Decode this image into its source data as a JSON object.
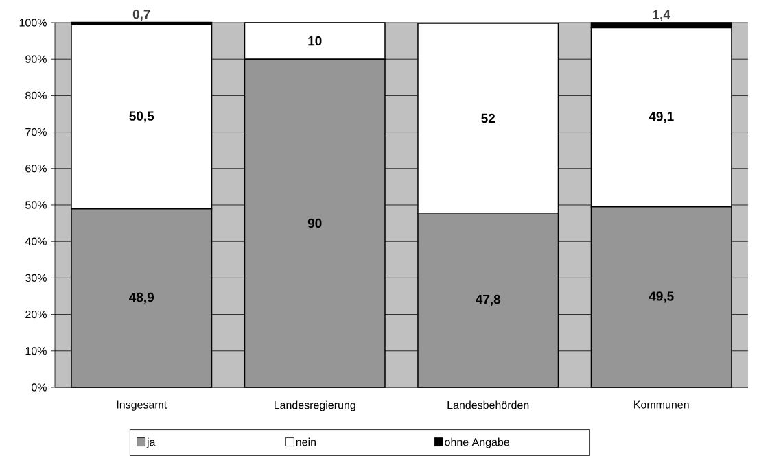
{
  "chart_data": {
    "type": "bar",
    "stacked": true,
    "categories": [
      "Insgesamt",
      "Landesregierung",
      "Landesbehörden",
      "Kommunen"
    ],
    "series": [
      {
        "name": "ja",
        "color": "#969696",
        "values": [
          48.9,
          90,
          47.8,
          49.5
        ],
        "value_labels": [
          "48,9",
          "90",
          "47,8",
          "49,5"
        ]
      },
      {
        "name": "nein",
        "color": "#ffffff",
        "values": [
          50.5,
          10,
          52,
          49.1
        ],
        "value_labels": [
          "50,5",
          "10",
          "52",
          "49,1"
        ]
      },
      {
        "name": "ohne Angabe",
        "color": "#000000",
        "values": [
          0.7,
          null,
          null,
          1.4
        ],
        "value_labels": [
          "0,7",
          null,
          null,
          "1,4"
        ]
      }
    ],
    "ylim": [
      0,
      100
    ],
    "yticks": [
      {
        "value": 0,
        "label": "0%"
      },
      {
        "value": 10,
        "label": "10%"
      },
      {
        "value": 20,
        "label": "20%"
      },
      {
        "value": 30,
        "label": "30%"
      },
      {
        "value": 40,
        "label": "40%"
      },
      {
        "value": 50,
        "label": "50%"
      },
      {
        "value": 60,
        "label": "60%"
      },
      {
        "value": 70,
        "label": "70%"
      },
      {
        "value": 80,
        "label": "80%"
      },
      {
        "value": 90,
        "label": "90%"
      },
      {
        "value": 100,
        "label": "100%"
      }
    ],
    "grid": "y",
    "legend": "bottom"
  }
}
